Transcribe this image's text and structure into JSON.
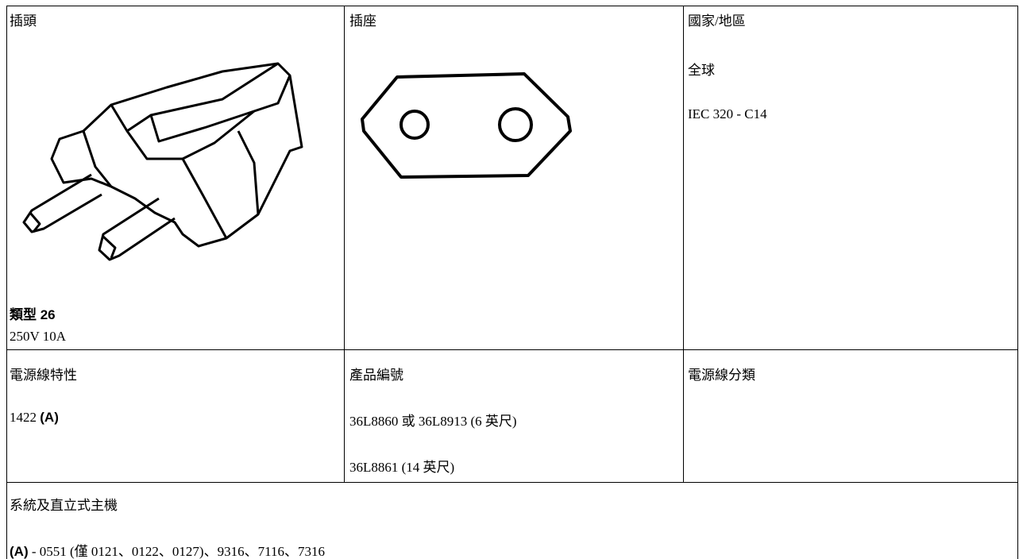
{
  "table": {
    "headers": [
      "插頭",
      "插座",
      "國家/地區"
    ],
    "plug": {
      "type": "類型 26",
      "rating": "250V 10A"
    },
    "country": [
      "全球",
      "IEC 320 - C14"
    ],
    "row2_headers": [
      "電源線特性",
      "產品編號",
      "電源線分類"
    ],
    "feature": {
      "code": "1422",
      "note": "(A)"
    },
    "part_numbers": [
      "36L8860 或 36L8913 (6 英尺)",
      "36L8861 (14 英尺)"
    ],
    "systems": {
      "title": "系統及直立式主機",
      "note": "(A)",
      "text": "- 0551 (僅 0121、0122、0127)、9316、7116、7316"
    }
  }
}
